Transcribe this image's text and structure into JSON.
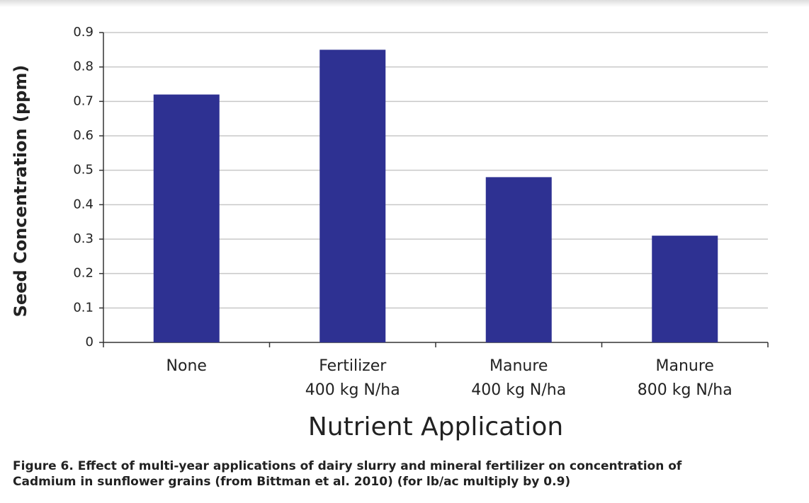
{
  "chart_data": {
    "type": "bar",
    "y_label": "Seed Concentration (ppm)",
    "x_label": "Nutrient Application",
    "categories": [
      [
        "None"
      ],
      [
        "Fertilizer",
        "400 kg N/ha"
      ],
      [
        "Manure",
        "400 kg N/ha"
      ],
      [
        "Manure",
        "800 kg N/ha"
      ]
    ],
    "values": [
      0.72,
      0.85,
      0.48,
      0.31
    ],
    "color": "#2e3192",
    "ylim": [
      0,
      0.9
    ],
    "yticks": [
      0,
      0.1,
      0.2,
      0.3,
      0.4,
      0.5,
      0.6,
      0.7,
      0.8,
      0.9
    ],
    "grid": true,
    "caption": [
      "Figure 6. Effect of multi-year applications of dairy slurry and mineral fertilizer on concentration of",
      "Cadmium in sunflower grains (from Bittman et al. 2010) (for lb/ac multiply by 0.9)"
    ]
  }
}
